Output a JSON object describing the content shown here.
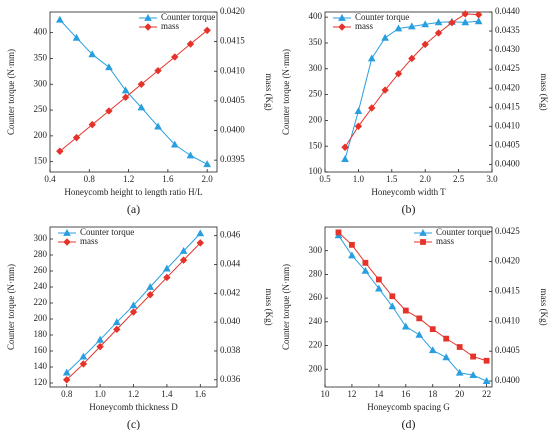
{
  "chart_data": [
    {
      "type": "line",
      "panel_label": "(a)",
      "xlabel": "Honeycomb height to length ratio H/L",
      "ylabel": "Counter torque (N·mm)",
      "y2label": "mass (Kg)",
      "legend": "upper right",
      "x": [
        0.5,
        0.67,
        0.83,
        1.0,
        1.17,
        1.33,
        1.5,
        1.67,
        1.83,
        2.0
      ],
      "series": [
        {
          "name": "Counter torque",
          "color": "#2a9fdf",
          "marker": "triangle",
          "values": [
            425,
            390,
            358,
            333,
            288,
            255,
            218,
            183,
            162,
            145
          ]
        },
        {
          "name": "mass",
          "color": "#e5332a",
          "marker": "diamond",
          "axis": "y2",
          "values": [
            0.03965,
            0.03988,
            0.0401,
            0.04033,
            0.04056,
            0.04078,
            0.04101,
            0.04124,
            0.04146,
            0.04169
          ]
        }
      ],
      "xlim": [
        0.4,
        2.1
      ],
      "xticks": [
        0.4,
        0.8,
        1.2,
        1.6,
        {
          "value": 2,
          "label": "2.0"
        }
      ],
      "ylim": [
        130,
        440
      ],
      "yticks": [
        150,
        200,
        250,
        300,
        350,
        400
      ],
      "y2lim": [
        0.0393,
        0.042
      ],
      "y2ticks": [
        0.0395,
        {
          "value": 0.04,
          "label": "0.0400"
        },
        0.0405,
        {
          "value": 0.041,
          "label": "0.0410"
        },
        0.0415,
        {
          "value": 0.042,
          "label": "0.0420"
        }
      ]
    },
    {
      "type": "line",
      "panel_label": "(b)",
      "xlabel": "Honeycomb width T",
      "ylabel": "Counter torque (N·mm)",
      "y2label": "mass (Kg)",
      "legend": "upper left",
      "x": [
        0.8,
        1.0,
        1.2,
        1.4,
        1.6,
        1.8,
        2.0,
        2.2,
        2.4,
        2.6,
        2.8
      ],
      "series": [
        {
          "name": "Counter torque",
          "color": "#2a9fdf",
          "marker": "triangle",
          "values": [
            125,
            218,
            320,
            360,
            378,
            382,
            386,
            390,
            391,
            390,
            392
          ]
        },
        {
          "name": "mass",
          "color": "#e5332a",
          "marker": "diamond",
          "axis": "y2",
          "values": [
            0.04045,
            0.041,
            0.04148,
            0.04195,
            0.04238,
            0.04278,
            0.04315,
            0.04345,
            0.04372,
            0.04395,
            0.04393
          ]
        }
      ],
      "xlim": [
        0.5,
        3.0
      ],
      "xticks": [
        0.5,
        {
          "value": 1,
          "label": "1.0"
        },
        1.5,
        {
          "value": 2,
          "label": "2.0"
        },
        2.5,
        {
          "value": 3,
          "label": "3.0"
        }
      ],
      "ylim": [
        100,
        410
      ],
      "yticks": [
        100,
        150,
        200,
        250,
        300,
        350,
        400
      ],
      "y2lim": [
        0.0398,
        0.044
      ],
      "y2ticks": [
        {
          "value": 0.04,
          "label": "0.0400"
        },
        0.0405,
        {
          "value": 0.041,
          "label": "0.0410"
        },
        0.0415,
        {
          "value": 0.042,
          "label": "0.0420"
        },
        0.0425,
        {
          "value": 0.043,
          "label": "0.0430"
        },
        0.0435,
        {
          "value": 0.044,
          "label": "0.0440"
        }
      ]
    },
    {
      "type": "line",
      "panel_label": "(c)",
      "xlabel": "Honeycomb thickness D",
      "ylabel": "Counter torque (N·mm)",
      "y2label": "mass (Kg)",
      "legend": "upper left",
      "x": [
        0.8,
        0.9,
        1.0,
        1.1,
        1.2,
        1.3,
        1.4,
        1.5,
        1.6
      ],
      "series": [
        {
          "name": "Counter torque",
          "color": "#2a9fdf",
          "marker": "triangle",
          "values": [
            133,
            153,
            174,
            196,
            217,
            240,
            263,
            285,
            307
          ]
        },
        {
          "name": "mass",
          "color": "#e5332a",
          "marker": "diamond",
          "axis": "y2",
          "values": [
            0.036,
            0.0371,
            0.0383,
            0.0395,
            0.0407,
            0.0419,
            0.0431,
            0.0443,
            0.0455
          ]
        }
      ],
      "xlim": [
        0.7,
        1.7
      ],
      "xticks": [
        0.8,
        {
          "value": 1,
          "label": "1.0"
        },
        1.2,
        1.4,
        1.6
      ],
      "ylim": [
        115,
        315
      ],
      "yticks": [
        120,
        140,
        160,
        180,
        200,
        220,
        240,
        260,
        280,
        300
      ],
      "y2lim": [
        0.0355,
        0.0466
      ],
      "y2ticks": [
        0.036,
        0.038,
        {
          "value": 0.04,
          "label": "0.040"
        },
        0.042,
        0.044,
        0.046
      ]
    },
    {
      "type": "line",
      "panel_label": "(d)",
      "xlabel": "Honeycomb spacing G",
      "ylabel": "Counter torque (N·mm)",
      "y2label": "mass (Kg)",
      "legend": "upper right",
      "x": [
        11,
        12,
        13,
        14,
        15,
        16,
        17,
        18,
        19,
        20,
        21,
        22
      ],
      "series": [
        {
          "name": "Counter torque",
          "color": "#2a9fdf",
          "marker": "triangle",
          "values": [
            313,
            296,
            283,
            268,
            253,
            236,
            229,
            216,
            210,
            197,
            195,
            190
          ]
        },
        {
          "name": "mass",
          "color": "#e5332a",
          "marker": "square",
          "axis": "y2",
          "values": [
            0.04249,
            0.04228,
            0.04198,
            0.0417,
            0.04142,
            0.04118,
            0.04105,
            0.04087,
            0.04071,
            0.04057,
            0.04041,
            0.04034
          ]
        }
      ],
      "xlim": [
        10,
        22.4
      ],
      "xticks": [
        10,
        12,
        14,
        16,
        18,
        20,
        22
      ],
      "ylim": [
        185,
        320
      ],
      "yticks": [
        200,
        220,
        240,
        260,
        280,
        300
      ],
      "y2lim": [
        0.0399,
        0.04258
      ],
      "y2ticks": [
        {
          "value": 0.04,
          "label": "0.0400"
        },
        0.0405,
        {
          "value": 0.041,
          "label": "0.0410"
        },
        0.0415,
        {
          "value": 0.042,
          "label": "0.0420"
        },
        0.0425
      ]
    }
  ]
}
